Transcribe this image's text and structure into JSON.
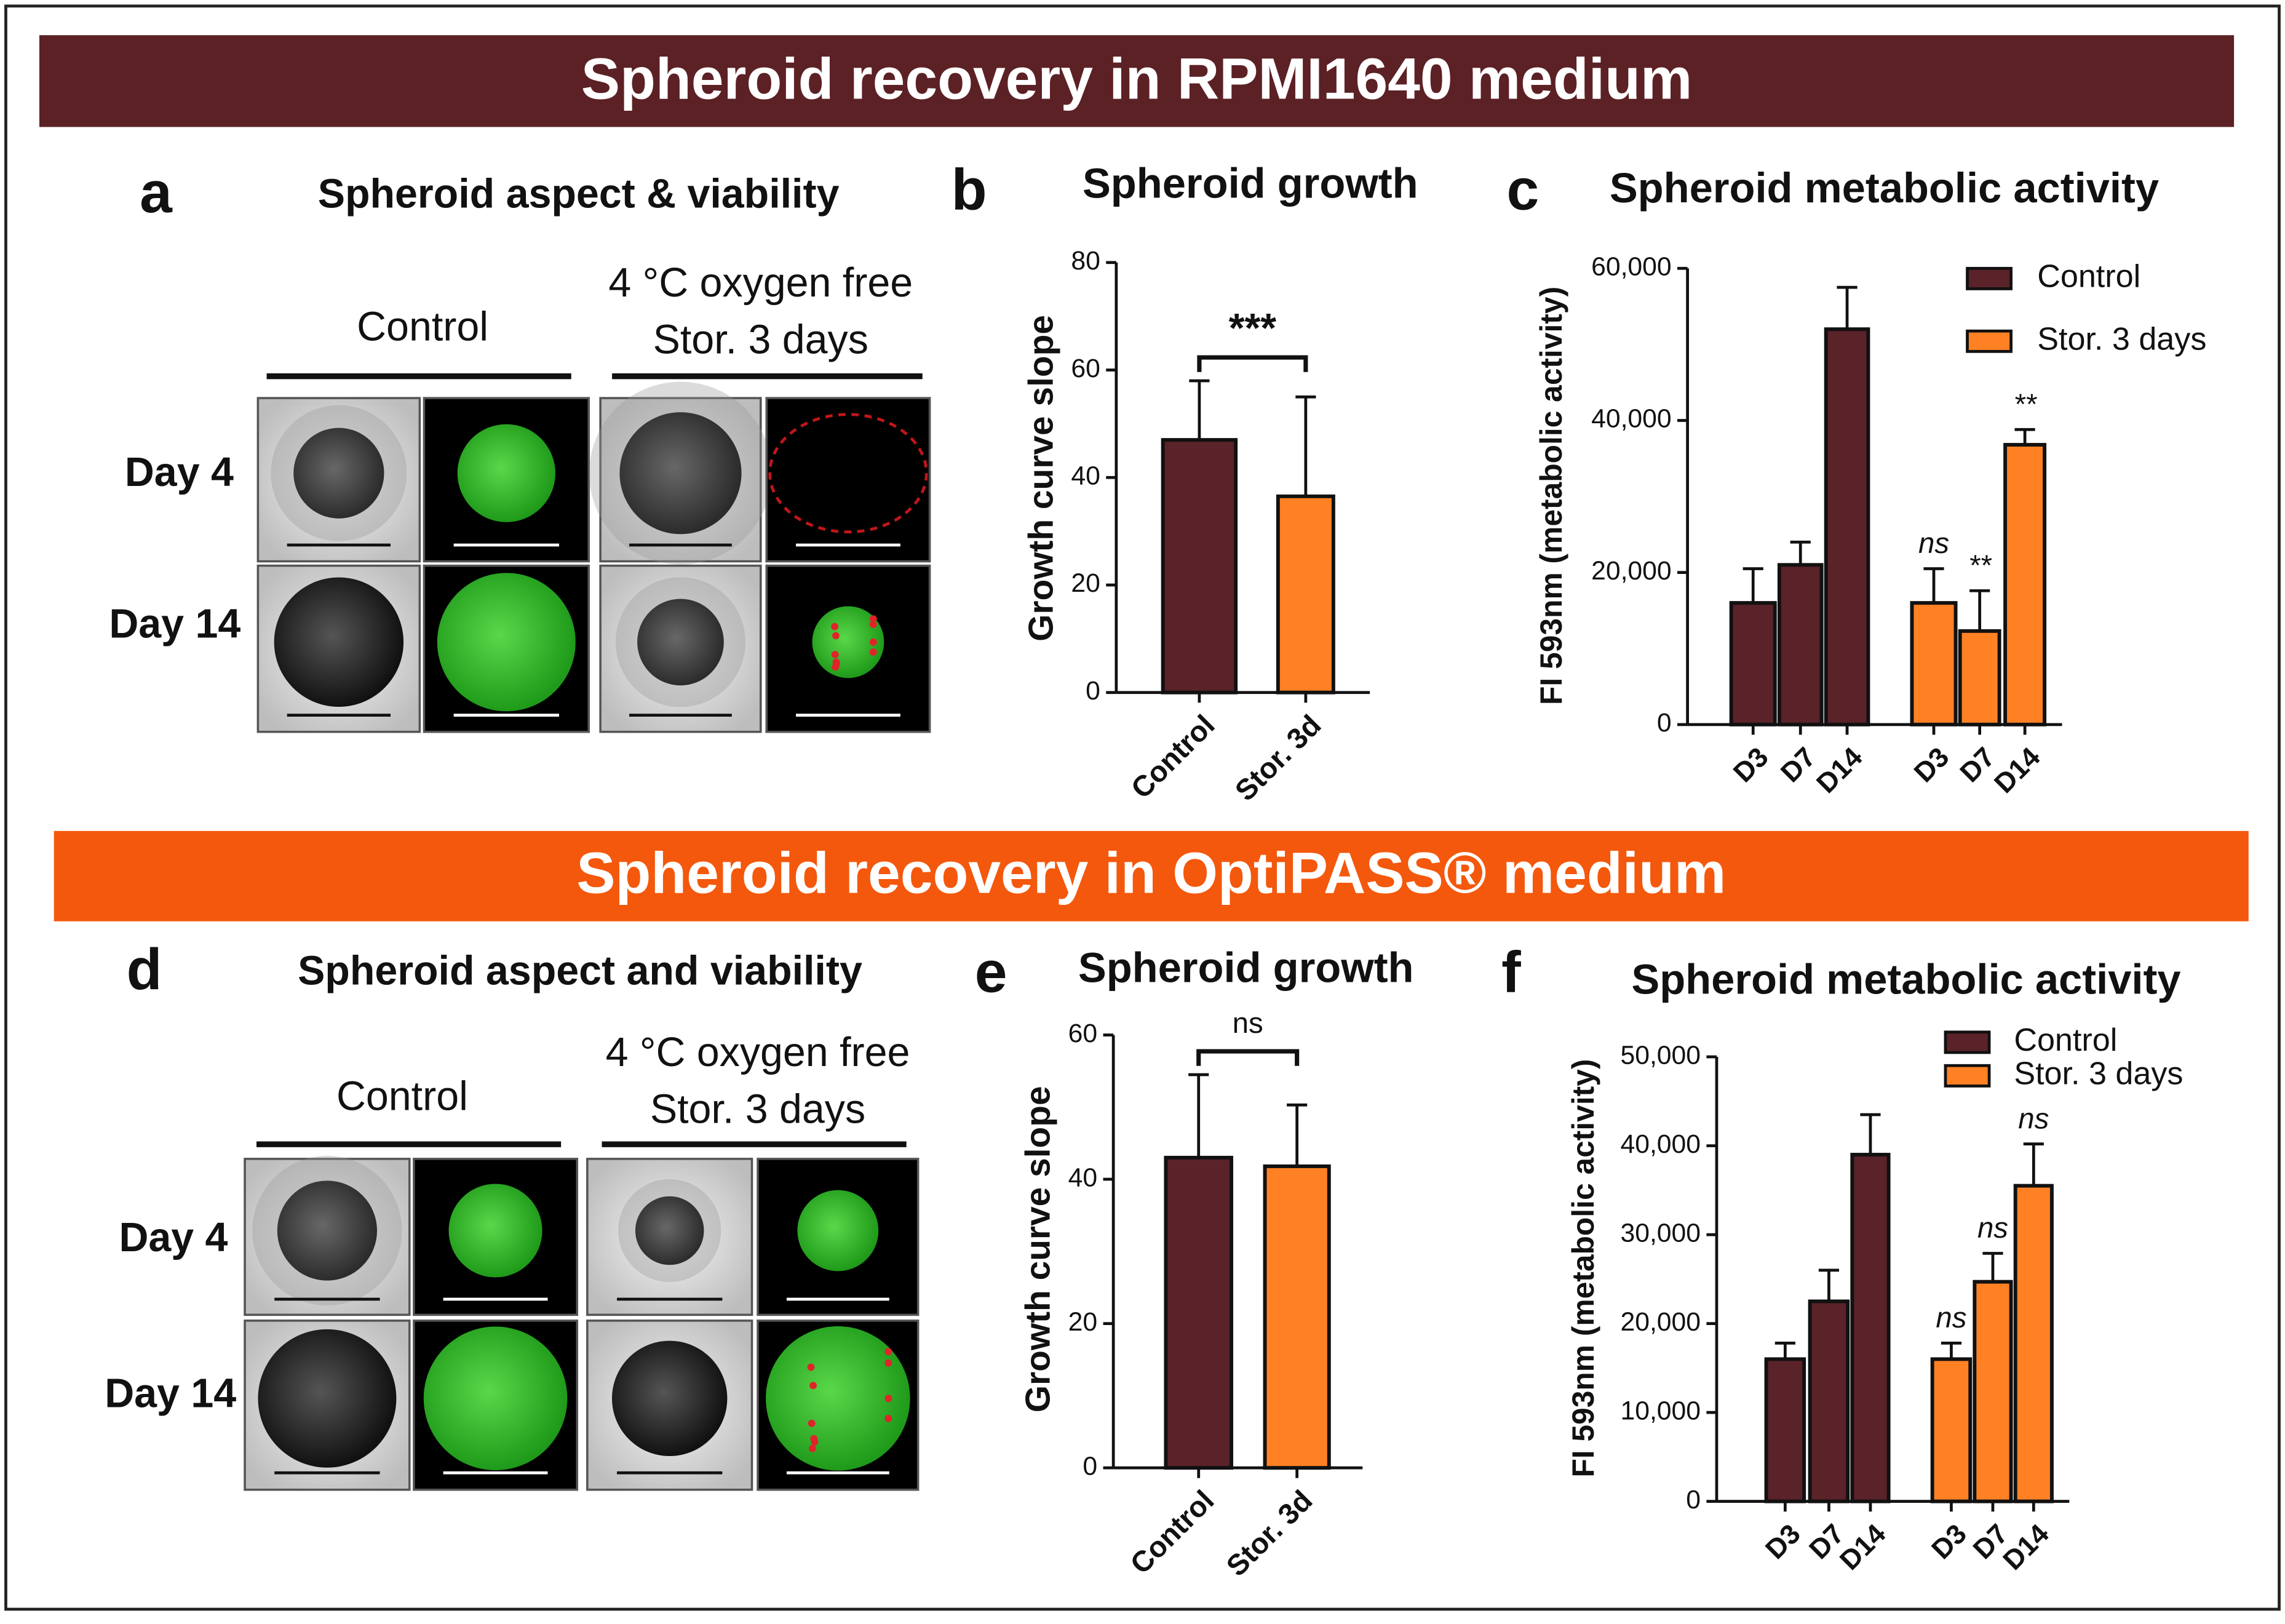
{
  "banners": [
    "Spheroid recovery in RPMI1640 medium",
    "Spheroid recovery in OptiPASS® medium"
  ],
  "image_panels": [
    {
      "panel_label": "a",
      "title": "Spheroid aspect & viability",
      "control_label": "Control",
      "stored_label": [
        "4 °C oxygen free",
        "Stor. 3 days"
      ],
      "rows": [
        "Day 4",
        "Day 14"
      ]
    },
    {
      "panel_label": "d",
      "title": "Spheroid aspect and viability",
      "control_label": "Control",
      "stored_label": [
        "4 °C oxygen free",
        "Stor. 3 days"
      ],
      "rows": [
        "Day 4",
        "Day 14"
      ]
    }
  ],
  "chart_data": [
    {
      "type": "bar",
      "panel_label": "b",
      "title": "Spheroid growth",
      "ylabel": "Growth curve slope",
      "categories": [
        "Control",
        "Stor. 3d"
      ],
      "values": [
        47,
        36.5
      ],
      "errors": [
        11,
        18.5
      ],
      "colors": [
        "#5a2229",
        "#ff8124"
      ],
      "significance": "***",
      "ylim": [
        0,
        80
      ],
      "yticks": [
        0,
        20,
        40,
        60,
        80
      ]
    },
    {
      "type": "grouped_bar",
      "panel_label": "c",
      "title": "Spheroid metabolic activity",
      "ylabel": "FI 593nm (metabolic activity)",
      "categories": [
        "D3",
        "D7",
        "D14"
      ],
      "series": [
        {
          "name": "Control",
          "color": "#5a2229",
          "values": [
            16000,
            21000,
            52000
          ],
          "errors": [
            4500,
            3000,
            5500
          ]
        },
        {
          "name": "Stor. 3 days",
          "color": "#ff8124",
          "values": [
            16000,
            12300,
            36800
          ],
          "errors": [
            4500,
            5300,
            2000
          ],
          "annotations": [
            "ns",
            "**",
            "**"
          ]
        }
      ],
      "ylim": [
        0,
        60000
      ],
      "yticks": [
        0,
        {
          "value": 20000,
          "label": "20,000"
        },
        {
          "value": 40000,
          "label": "40,000"
        },
        {
          "value": 60000,
          "label": "60,000"
        }
      ]
    },
    {
      "type": "bar",
      "panel_label": "e",
      "title": "Spheroid growth",
      "ylabel": "Growth curve slope",
      "categories": [
        "Control",
        "Stor. 3d"
      ],
      "values": [
        43,
        41.8
      ],
      "errors": [
        11.5,
        8.5
      ],
      "colors": [
        "#5a2229",
        "#ff8124"
      ],
      "significance": "ns",
      "ylim": [
        0,
        60
      ],
      "yticks": [
        0,
        20,
        40,
        60
      ]
    },
    {
      "type": "grouped_bar",
      "panel_label": "f",
      "title": "Spheroid metabolic activity",
      "ylabel": "FI 593nm (metabolic activity)",
      "categories": [
        "D3",
        "D7",
        "D14"
      ],
      "series": [
        {
          "name": "Control",
          "color": "#5a2229",
          "values": [
            16000,
            22500,
            39000
          ],
          "errors": [
            1800,
            3500,
            4500
          ]
        },
        {
          "name": "Stor. 3 days",
          "color": "#ff8124",
          "values": [
            16000,
            24700,
            35500
          ],
          "errors": [
            1800,
            3200,
            4700
          ],
          "annotations": [
            "ns",
            "ns",
            "ns"
          ]
        }
      ],
      "ylim": [
        0,
        50000
      ],
      "yticks": [
        0,
        {
          "value": 10000,
          "label": "10,000"
        },
        {
          "value": 20000,
          "label": "20,000"
        },
        {
          "value": 30000,
          "label": "30,000"
        },
        {
          "value": 40000,
          "label": "40,000"
        },
        {
          "value": 50000,
          "label": "50,000"
        }
      ]
    }
  ]
}
